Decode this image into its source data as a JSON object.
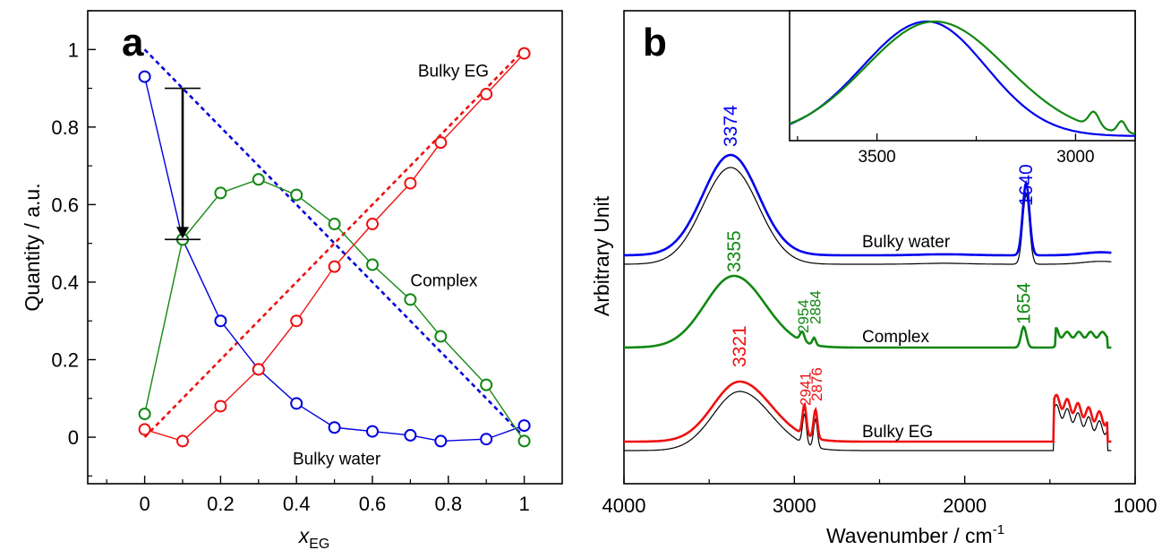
{
  "chart_data": [
    {
      "type": "line",
      "panel_label": "a",
      "ylabel": "Quantity / a.u.",
      "xlabel_main": "x",
      "xlabel_sub": "EG",
      "xlim": [
        -0.15,
        1.1
      ],
      "ylim": [
        -0.12,
        1.1
      ],
      "x_ticks": [
        0,
        0.2,
        0.4,
        0.6,
        0.8,
        1
      ],
      "x_tick_labels": [
        "0",
        "0.2",
        "0.4",
        "0.6",
        "0.8",
        "1"
      ],
      "y_ticks": [
        0,
        0.2,
        0.4,
        0.6,
        0.8,
        1
      ],
      "y_tick_labels": [
        "0",
        "0.2",
        "0.4",
        "0.6",
        "0.8",
        "1"
      ],
      "series": [
        {
          "name": "Bulky water",
          "color": "#0000dd",
          "x": [
            0,
            0.1,
            0.2,
            0.3,
            0.4,
            0.5,
            0.6,
            0.7,
            0.78,
            0.9,
            1.0
          ],
          "y": [
            0.93,
            0.51,
            0.3,
            0.175,
            0.087,
            0.025,
            0.015,
            0.005,
            -0.01,
            -0.005,
            0.03
          ]
        },
        {
          "name": "Complex",
          "color": "#118811",
          "x": [
            0,
            0.1,
            0.2,
            0.3,
            0.4,
            0.5,
            0.6,
            0.7,
            0.78,
            0.9,
            1.0
          ],
          "y": [
            0.06,
            0.51,
            0.63,
            0.665,
            0.625,
            0.55,
            0.445,
            0.355,
            0.26,
            0.135,
            -0.01
          ]
        },
        {
          "name": "Bulky EG",
          "color": "#ee1111",
          "x": [
            0,
            0.1,
            0.2,
            0.3,
            0.4,
            0.5,
            0.6,
            0.7,
            0.78,
            0.9,
            1.0
          ],
          "y": [
            0.02,
            -0.01,
            0.08,
            0.175,
            0.3,
            0.44,
            0.55,
            0.655,
            0.76,
            0.885,
            0.99
          ]
        }
      ],
      "reference_lines": [
        {
          "color": "#0000dd",
          "x": [
            0,
            1
          ],
          "y": [
            1.0,
            0.0
          ]
        },
        {
          "color": "#ee1111",
          "x": [
            0,
            1
          ],
          "y": [
            0.0,
            1.0
          ]
        }
      ],
      "arrow": {
        "x": 0.1,
        "y_from": 0.9,
        "y_to": 0.51
      },
      "annotations": [
        {
          "text": "Bulky EG",
          "x": 0.72,
          "y": 0.93,
          "color": "#000000"
        },
        {
          "text": "Complex",
          "x": 0.7,
          "y": 0.39,
          "color": "#000000"
        },
        {
          "text": "Bulky water",
          "x": 0.39,
          "y": -0.07,
          "color": "#000000"
        }
      ]
    },
    {
      "type": "line",
      "panel_label": "b",
      "ylabel": "Arbitrary Unit",
      "xlabel": "Wavenumber / cm",
      "xlabel_sup": "-1",
      "xlim": [
        4000,
        1000
      ],
      "x_ticks": [
        4000,
        3000,
        2000,
        1000
      ],
      "x_tick_labels": [
        "4000",
        "3000",
        "2000",
        "1000"
      ],
      "series": [
        {
          "name": "Bulky water",
          "color": "#0000ee",
          "peaks": [
            "3374",
            "1640"
          ]
        },
        {
          "name": "Complex",
          "color": "#118811",
          "peaks": [
            "3355",
            "2954",
            "2884",
            "1654"
          ]
        },
        {
          "name": "Bulky EG",
          "color": "#ee1111",
          "peaks": [
            "3321",
            "2941",
            "2876"
          ]
        }
      ],
      "peak_labels": [
        {
          "text": "3374",
          "x": 3374,
          "color": "#0000ee"
        },
        {
          "text": "1640",
          "x": 1640,
          "color": "#0000ee"
        },
        {
          "text": "3355",
          "x": 3355,
          "color": "#118811"
        },
        {
          "text": "2954",
          "x": 2954,
          "color": "#118811"
        },
        {
          "text": "2884",
          "x": 2884,
          "color": "#118811"
        },
        {
          "text": "1654",
          "x": 1654,
          "color": "#118811"
        },
        {
          "text": "3321",
          "x": 3321,
          "color": "#ee1111"
        },
        {
          "text": "2941",
          "x": 2941,
          "color": "#ee1111"
        },
        {
          "text": "2876",
          "x": 2876,
          "color": "#ee1111"
        }
      ],
      "annotations": [
        {
          "text": "Bulky water"
        },
        {
          "text": "Complex"
        },
        {
          "text": "Bulky EG"
        }
      ],
      "inset": {
        "xlim": [
          3720,
          2850
        ],
        "x_ticks": [
          3500,
          3000
        ],
        "x_tick_labels": [
          "3500",
          "3000"
        ],
        "series": [
          {
            "color": "#0000ee"
          },
          {
            "color": "#118811"
          }
        ]
      }
    }
  ]
}
